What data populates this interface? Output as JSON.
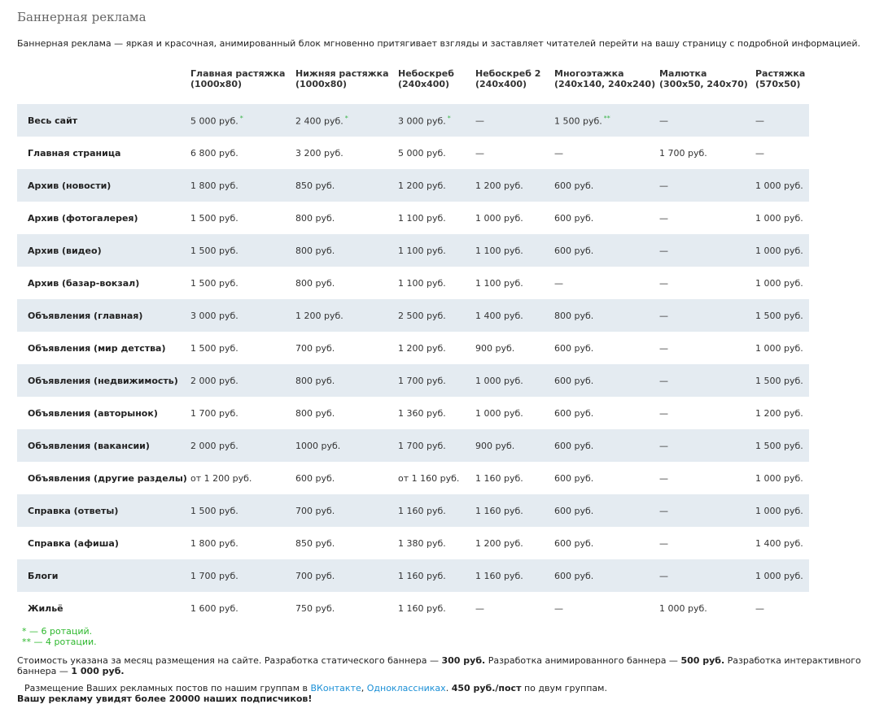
{
  "title": "Баннерная реклама",
  "intro": "Баннерная реклама — яркая и красочная, анимированный блок мгновенно притягивает взгляды и заставляет читателей перейти на вашу страницу с подробной информацией.",
  "table": {
    "columns": [
      {
        "name": "Главная растяжка",
        "size": "(1000x80)"
      },
      {
        "name": "Нижняя растяжка",
        "size": "(1000x80)"
      },
      {
        "name": "Небоскреб",
        "size": "(240x400)"
      },
      {
        "name": "Небоскреб 2",
        "size": "(240x400)"
      },
      {
        "name": "Многоэтажка",
        "size": "(240x140, 240x240)"
      },
      {
        "name": "Малютка",
        "size": "(300x50, 240x70)"
      },
      {
        "name": "Растяжка",
        "size": "(570x50)"
      }
    ],
    "rows": [
      {
        "label": "Весь сайт",
        "cells": [
          {
            "text": "5 000 руб.",
            "mark": "*"
          },
          {
            "text": "2 400 руб.",
            "mark": "*"
          },
          {
            "text": "3 000 руб.",
            "mark": "*"
          },
          "—",
          {
            "text": "1 500 руб.",
            "mark": "**"
          },
          "—",
          "—"
        ]
      },
      {
        "label": "Главная страница",
        "cells": [
          "6 800 руб.",
          "3 200 руб.",
          "5 000 руб.",
          "—",
          "—",
          "1 700 руб.",
          "—"
        ]
      },
      {
        "label": "Архив (новости)",
        "cells": [
          "1 800 руб.",
          "850 руб.",
          "1 200 руб.",
          "1 200 руб.",
          "600 руб.",
          "—",
          "1 000 руб."
        ]
      },
      {
        "label": "Архив (фотогалерея)",
        "cells": [
          "1 500 руб.",
          "800 руб.",
          "1 100 руб.",
          "1 000 руб.",
          "600 руб.",
          "—",
          "1 000 руб."
        ]
      },
      {
        "label": "Архив (видео)",
        "cells": [
          "1 500 руб.",
          "800 руб.",
          "1 100 руб.",
          "1 100 руб.",
          "600 руб.",
          "—",
          "1 000 руб."
        ]
      },
      {
        "label": "Архив (базар-вокзал)",
        "cells": [
          "1 500 руб.",
          "800 руб.",
          "1 100 руб.",
          "1 100 руб.",
          "—",
          "—",
          "1 000 руб."
        ]
      },
      {
        "label": "Объявления (главная)",
        "cells": [
          "3 000 руб.",
          "1 200 руб.",
          "2 500 руб.",
          "1 400 руб.",
          "800 руб.",
          "—",
          "1 500 руб."
        ]
      },
      {
        "label": "Объявления (мир детства)",
        "cells": [
          "1 500 руб.",
          "700 руб.",
          "1 200 руб.",
          "900 руб.",
          "600 руб.",
          "—",
          "1 000 руб."
        ]
      },
      {
        "label": "Объявления (недвижимость)",
        "cells": [
          "2 000 руб.",
          "800 руб.",
          "1 700 руб.",
          "1 000 руб.",
          "600 руб.",
          "—",
          "1 500 руб."
        ]
      },
      {
        "label": "Объявления (авторынок)",
        "cells": [
          "1 700 руб.",
          "800 руб.",
          "1 360 руб.",
          "1 000 руб.",
          "600 руб.",
          "—",
          "1 200 руб."
        ]
      },
      {
        "label": "Объявления (вакансии)",
        "cells": [
          "2 000 руб.",
          "1000 руб.",
          "1 700 руб.",
          "900 руб.",
          "600 руб.",
          "—",
          "1 500 руб."
        ]
      },
      {
        "label": "Объявления (другие разделы)",
        "cells": [
          "от 1 200 руб.",
          "600 руб.",
          "от 1 160 руб.",
          "1 160 руб.",
          "600 руб.",
          "—",
          "1 000 руб."
        ]
      },
      {
        "label": "Справка (ответы)",
        "cells": [
          "1 500 руб.",
          "700 руб.",
          "1 160 руб.",
          "1 160 руб.",
          "600 руб.",
          "—",
          "1 000 руб."
        ]
      },
      {
        "label": "Справка (афиша)",
        "cells": [
          "1 800 руб.",
          "850 руб.",
          "1 380 руб.",
          "1 200 руб.",
          "600 руб.",
          "—",
          "1 400 руб."
        ]
      },
      {
        "label": "Блоги",
        "cells": [
          "1 700 руб.",
          "700 руб.",
          "1 160 руб.",
          "1 160 руб.",
          "600 руб.",
          "—",
          "1 000 руб."
        ]
      },
      {
        "label": "Жильё",
        "cells": [
          "1 600 руб.",
          "750 руб.",
          "1 160 руб.",
          "—",
          "—",
          "1 000 руб.",
          "—"
        ]
      }
    ]
  },
  "footnotes": [
    "* — 6 ротаций.",
    "** — 4 ротации."
  ],
  "cost_note": [
    {
      "text": "Стоимость указана за месяц размещения на сайте. Разработка статического баннера — "
    },
    {
      "text": "300 руб.",
      "bold": true
    },
    {
      "text": " Разработка анимированного баннера — "
    },
    {
      "text": "500 руб.",
      "bold": true
    },
    {
      "text": " Разработка интерактивного баннера — "
    },
    {
      "text": "1 000 руб.",
      "bold": true
    }
  ],
  "groups_note": [
    {
      "text": "Размещение Ваших рекламных постов по нашим группам в "
    },
    {
      "text": "ВКонтакте",
      "link": true
    },
    {
      "text": ", "
    },
    {
      "text": "Одноклассниках",
      "link": true
    },
    {
      "text": ". "
    },
    {
      "text": "450 руб./пост",
      "bold": true
    },
    {
      "text": " по двум группам."
    }
  ],
  "subscribers": "Вашу рекламу увидят более 20000 наших подписчиков!"
}
